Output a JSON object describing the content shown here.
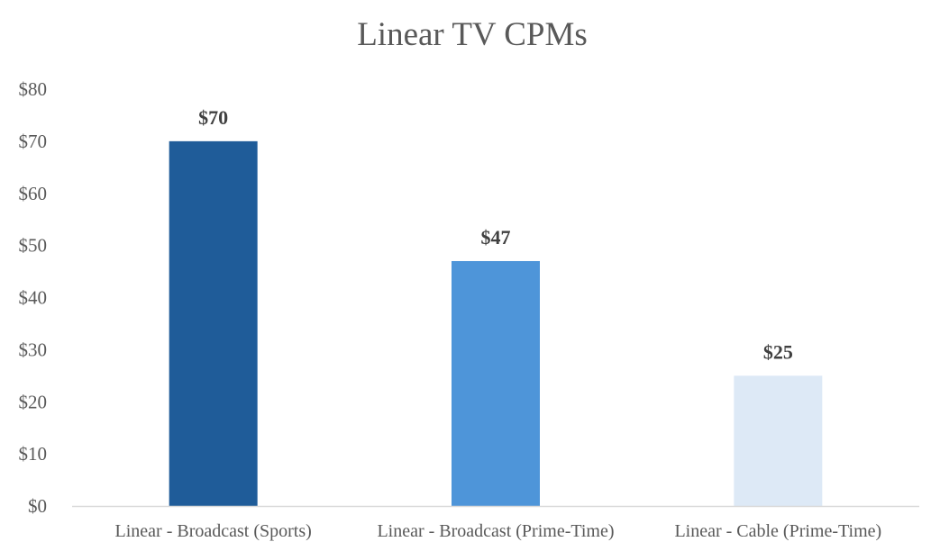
{
  "chart_data": {
    "type": "bar",
    "title": "Linear TV CPMs",
    "xlabel": "",
    "ylabel": "",
    "categories": [
      "Linear - Broadcast (Sports)",
      "Linear - Broadcast (Prime-Time)",
      "Linear - Cable (Prime-Time)"
    ],
    "values": [
      70,
      47,
      25
    ],
    "data_labels": [
      "$70",
      "$47",
      "$25"
    ],
    "bar_colors": [
      "#1f5c99",
      "#4e95d9",
      "#dde9f6"
    ],
    "ylim": [
      0,
      80
    ],
    "y_ticks": [
      0,
      10,
      20,
      30,
      40,
      50,
      60,
      70,
      80
    ],
    "y_tick_labels": [
      "$0",
      "$10",
      "$20",
      "$30",
      "$40",
      "$50",
      "$60",
      "$70",
      "$80"
    ],
    "grid": false,
    "legend": "none",
    "axis_color": "#d9d9d9"
  }
}
